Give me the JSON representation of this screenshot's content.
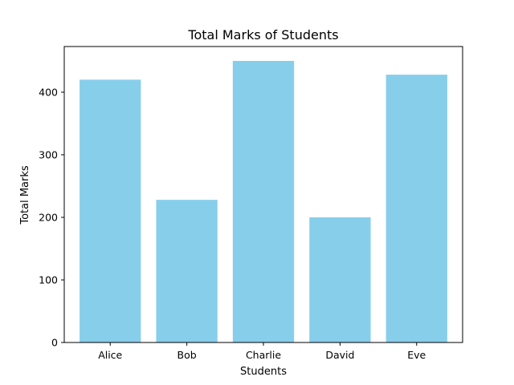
{
  "chart_data": {
    "type": "bar",
    "title": "Total Marks of Students",
    "xlabel": "Students",
    "ylabel": "Total Marks",
    "categories": [
      "Alice",
      "Bob",
      "Charlie",
      "David",
      "Eve"
    ],
    "values": [
      420,
      228,
      450,
      200,
      428
    ],
    "ylim": [
      0,
      473
    ],
    "yticks": [
      0,
      100,
      200,
      300,
      400
    ],
    "grid": false,
    "bar_color": "#87ceeb"
  }
}
